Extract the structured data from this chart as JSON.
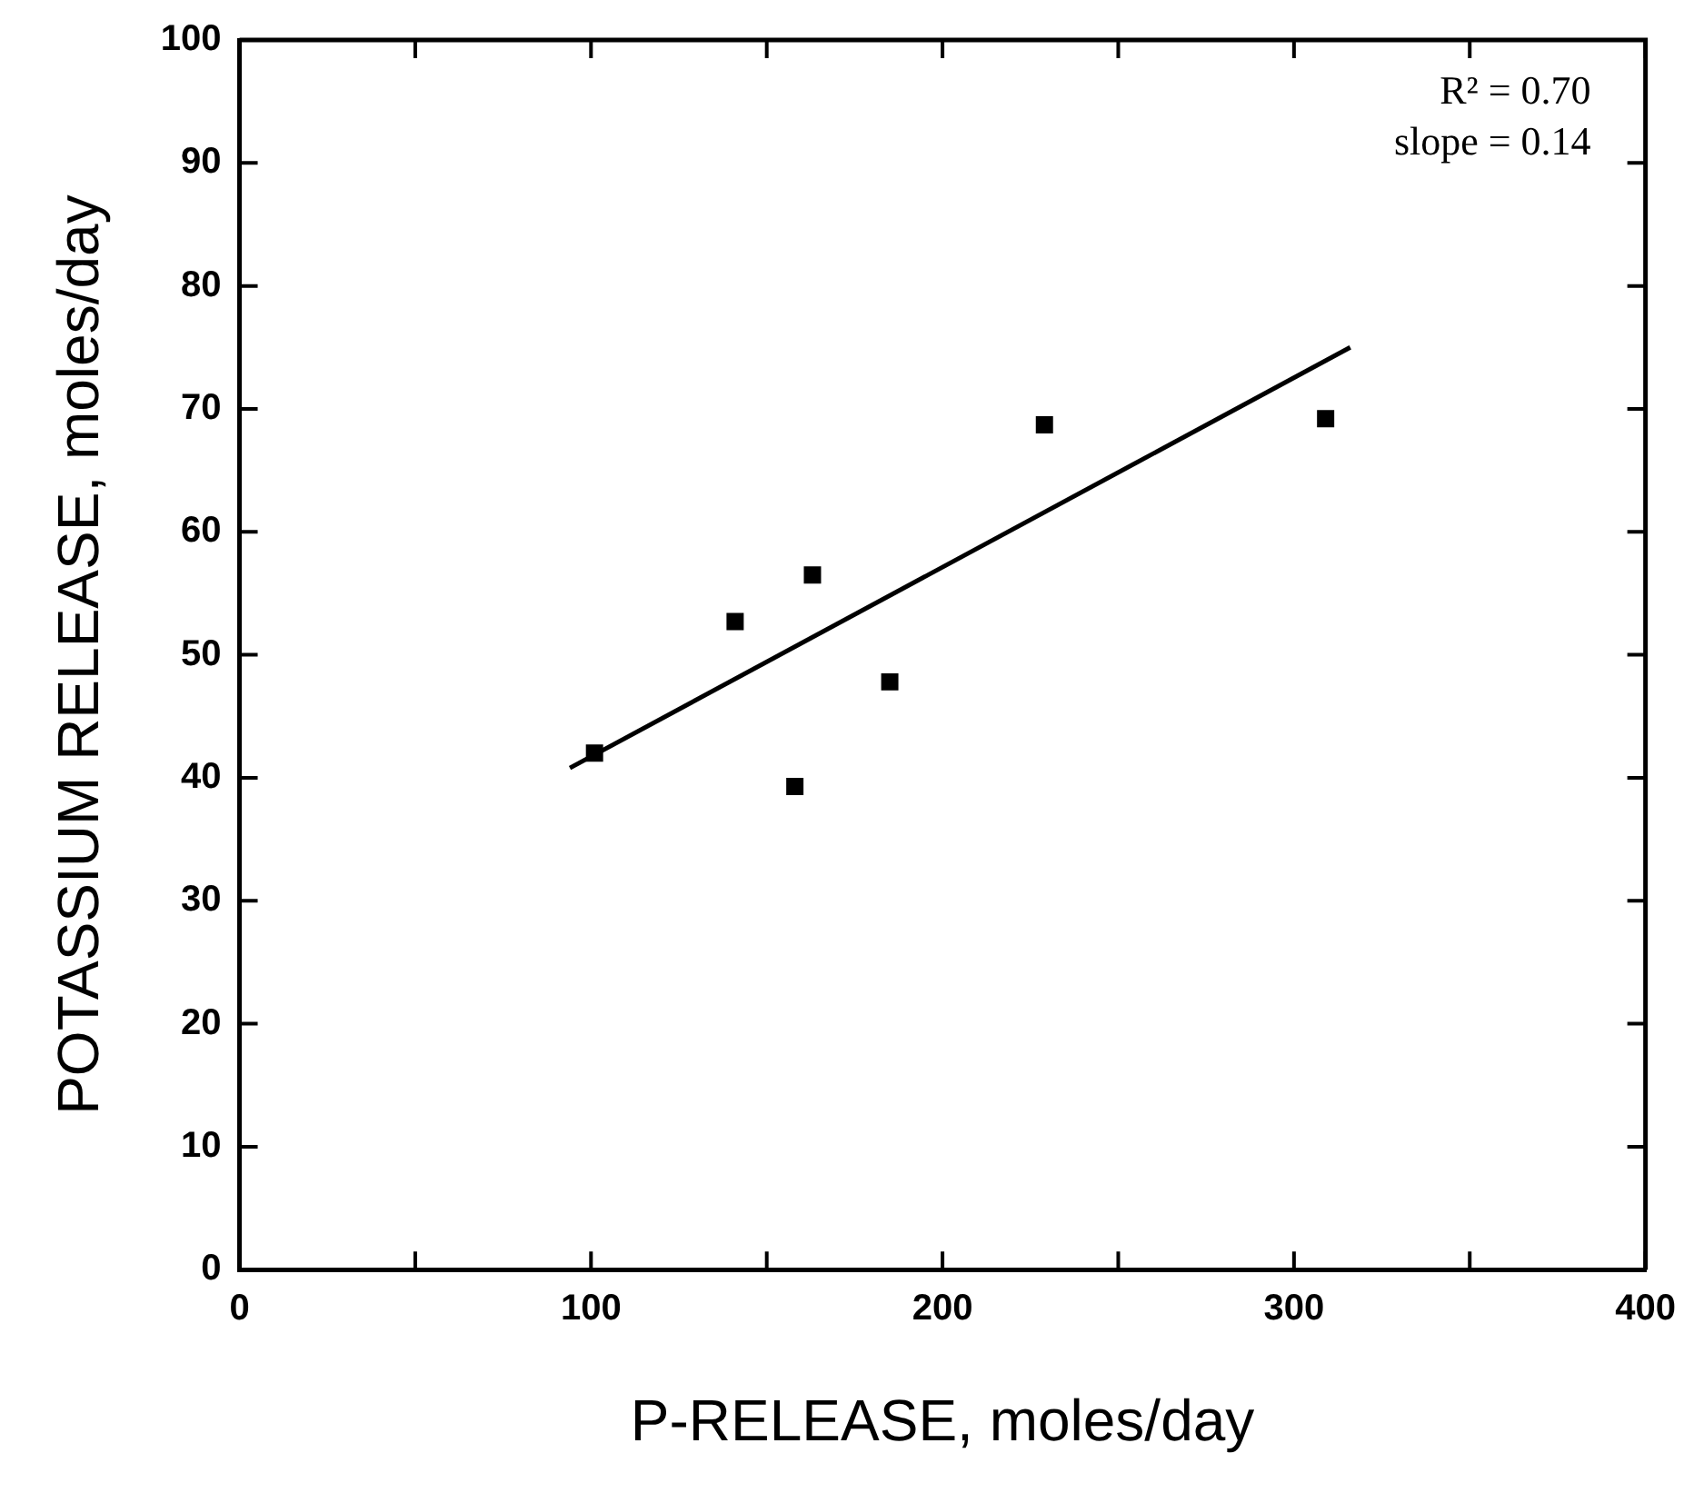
{
  "chart_data": {
    "type": "scatter",
    "xlabel": "P-RELEASE, moles/day",
    "ylabel": "POTASSIUM RELEASE, moles/day",
    "xlim": [
      0,
      400
    ],
    "xticks": [
      0,
      {
        "value": 50,
        "label": null
      },
      100,
      {
        "value": 150,
        "label": null
      },
      200,
      {
        "value": 250,
        "label": null
      },
      300,
      {
        "value": 350,
        "label": null
      },
      400
    ],
    "ylim": [
      0,
      100
    ],
    "yticks": [
      0,
      10,
      20,
      30,
      40,
      50,
      60,
      70,
      80,
      90,
      100
    ],
    "grid": false,
    "legend": false,
    "marker": "square",
    "series": [
      {
        "color": "#000000",
        "x": [
          101,
          141,
          163,
          158,
          185,
          229,
          309
        ],
        "values": [
          42.0,
          52.7,
          56.5,
          39.3,
          47.8,
          68.7,
          69.2
        ]
      },
      {
        "type": "line",
        "color": "#000000",
        "marker": "none",
        "line_style": "solid",
        "x": [
          94,
          316
        ],
        "values": [
          40.8,
          75
        ]
      }
    ],
    "annotations": [
      "R² = 0.70",
      "slope = 0.14"
    ]
  }
}
